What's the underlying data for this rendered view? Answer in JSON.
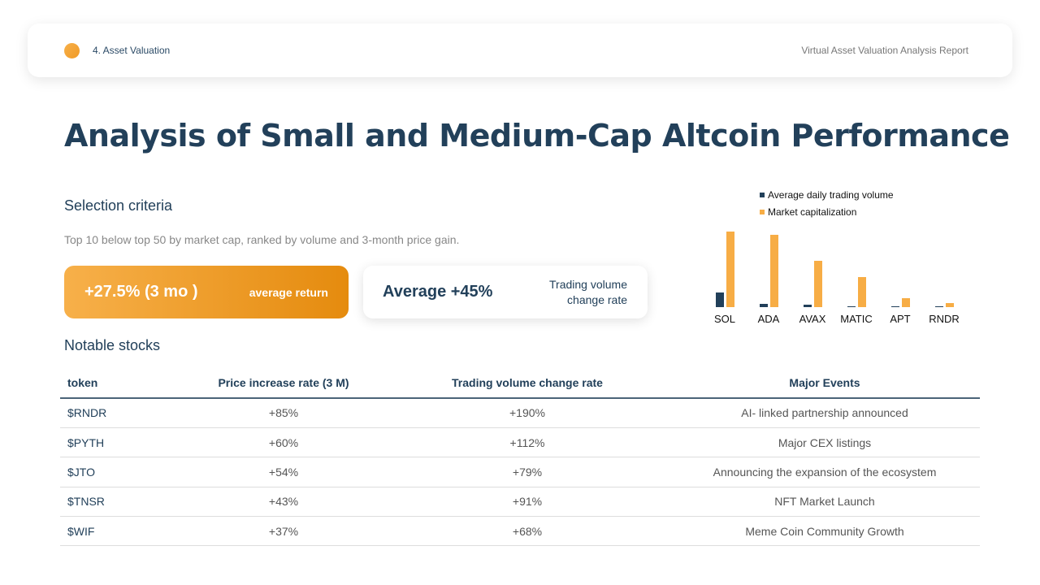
{
  "header": {
    "section": "4. Asset Valuation",
    "report": "Virtual Asset Valuation Analysis Report"
  },
  "title": "Analysis of Small and Medium-Cap Altcoin Performance",
  "selection": {
    "heading": "Selection criteria",
    "description": "Top 10 below top 50 by market cap, ranked by volume and 3-month price gain."
  },
  "card_return": {
    "value": "+27.5% (3 mo )",
    "label": "average return"
  },
  "card_volume": {
    "value": "Average +45%",
    "label_line1": "Trading volume",
    "label_line2": "change rate"
  },
  "notable": {
    "heading": "Notable stocks",
    "columns": [
      "token",
      "Price increase rate (3 M)",
      "Trading volume change rate",
      "Major Events"
    ],
    "rows": [
      [
        "$RNDR",
        "+85%",
        "+190%",
        "AI- linked partnership announced"
      ],
      [
        "$PYTH",
        "+60%",
        "+112%",
        "Major CEX listings"
      ],
      [
        "$JTO",
        "+54%",
        "+79%",
        "Announcing the expansion of the ecosystem"
      ],
      [
        "$TNSR",
        "+43%",
        "+91%",
        "NFT Market Launch"
      ],
      [
        "$WIF",
        "+37%",
        "+68%",
        "Meme Coin Community Growth"
      ]
    ]
  },
  "chart_data": {
    "type": "bar",
    "categories": [
      "SOL",
      "ADA",
      "AVAX",
      "MATIC",
      "APT",
      "RNDR"
    ],
    "series": [
      {
        "name": "Average daily trading volume",
        "values": [
          18,
          4,
          3,
          1,
          1,
          1
        ],
        "color": "#22405a"
      },
      {
        "name": "Market capitalization",
        "values": [
          93,
          89,
          57,
          37,
          11,
          5
        ],
        "color": "#f7ad45"
      }
    ],
    "legend": "top",
    "grid": false,
    "axes_shown": false,
    "note": ""
  }
}
